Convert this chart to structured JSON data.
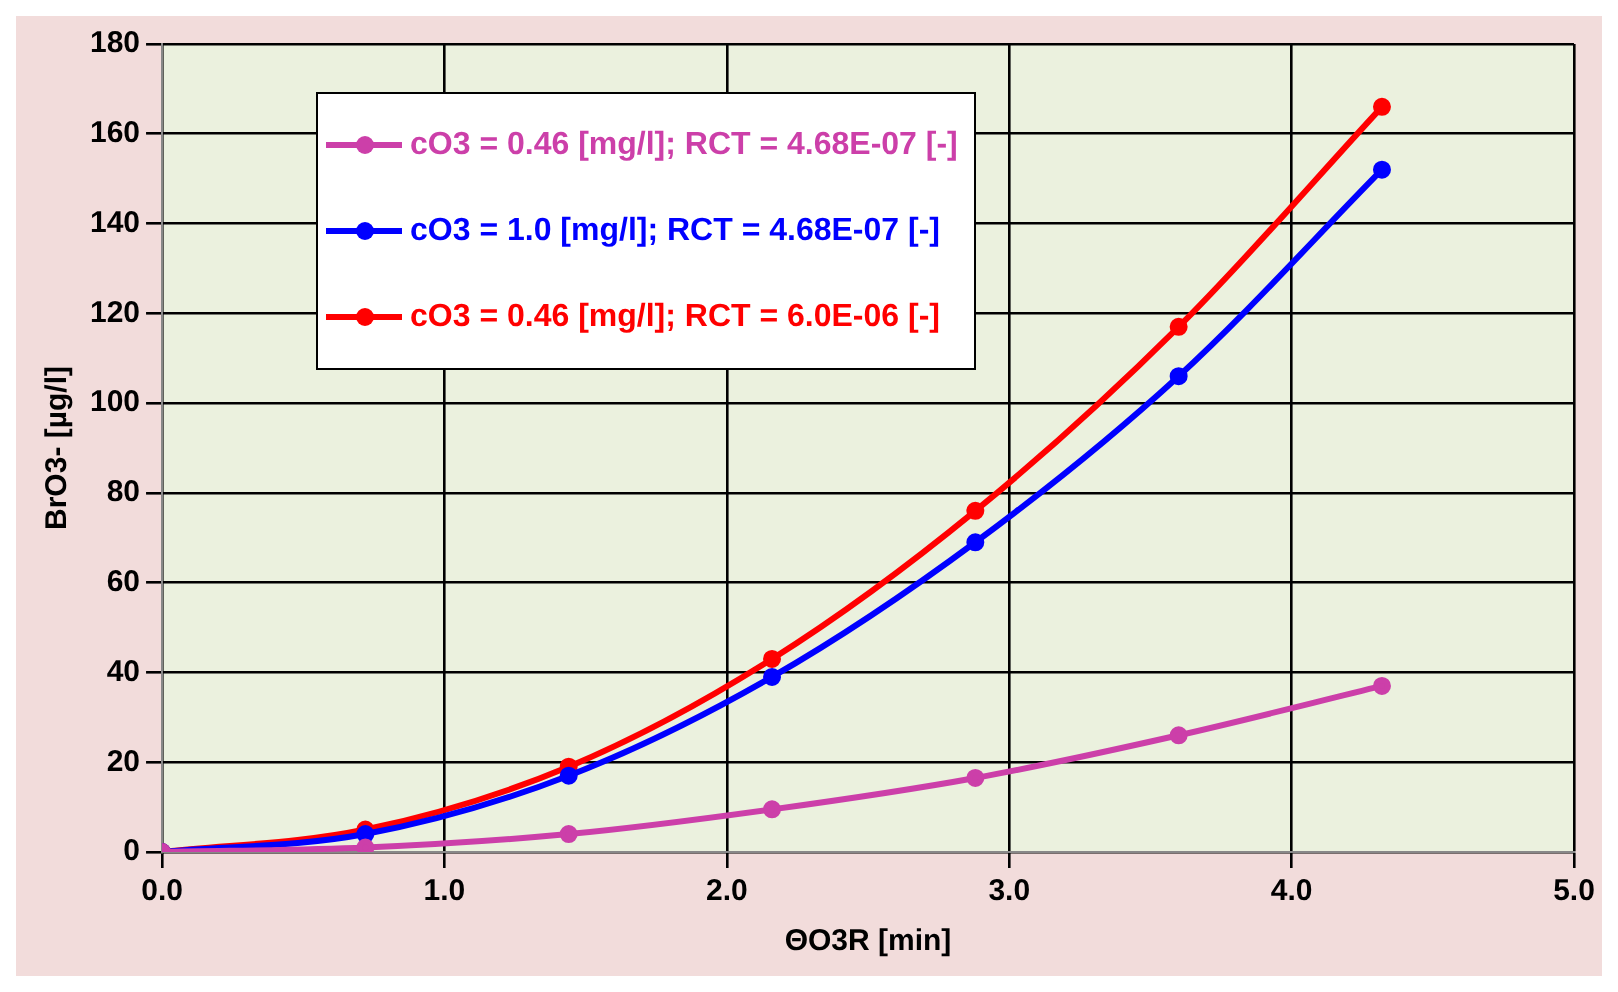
{
  "chart_data": {
    "type": "line",
    "xlabel": "ΘO3R [min]",
    "ylabel": "BrO3- [µg/l]",
    "x": [
      0,
      0.72,
      1.44,
      2.16,
      2.88,
      3.6,
      4.32
    ],
    "series": [
      {
        "name": "cO3 = 0.46 [mg/l]; RCT = 4.68E-07 [-]",
        "color": "#cc3fa9",
        "values": [
          0,
          1,
          4,
          9.5,
          16.5,
          26,
          37
        ]
      },
      {
        "name": "cO3 = 1.0 [mg/l]; RCT = 4.68E-07 [-]",
        "color": "#0000ff",
        "values": [
          0,
          4,
          17,
          39,
          69,
          106,
          152
        ]
      },
      {
        "name": "cO3 = 0.46 [mg/l]; RCT = 6.0E-06 [-]",
        "color": "#ff0000",
        "values": [
          0,
          5,
          19,
          43,
          76,
          117,
          166
        ]
      }
    ],
    "xlim": [
      0,
      5
    ],
    "xticks": [
      {
        "value": 0,
        "label": "0.0"
      },
      {
        "value": 1,
        "label": "1.0"
      },
      {
        "value": 2,
        "label": "2.0"
      },
      {
        "value": 3,
        "label": "3.0"
      },
      {
        "value": 4,
        "label": "4.0"
      },
      {
        "value": 5,
        "label": "5.0"
      }
    ],
    "ylim": [
      0,
      180
    ],
    "yticks": [
      0,
      20,
      40,
      60,
      80,
      100,
      120,
      140,
      160,
      180
    ],
    "grid": true,
    "legend": "top left",
    "marker": "circle",
    "line_style": "solid"
  }
}
